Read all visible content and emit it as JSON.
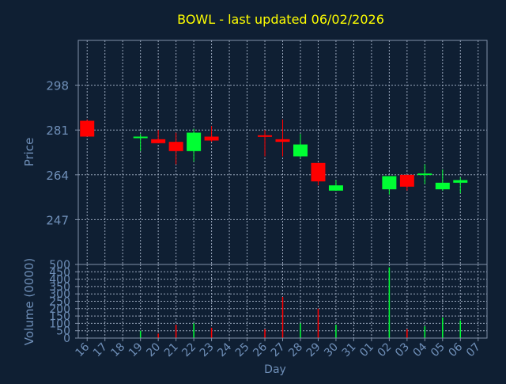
{
  "chart_data": {
    "type": "candlestick",
    "title": "BOWL - last updated 06/02/2026",
    "xlabel": "Day",
    "price_panel": {
      "ylabel": "Price",
      "ylim": [
        230,
        315
      ],
      "yticks": [
        247,
        264,
        281,
        298
      ]
    },
    "volume_panel": {
      "ylabel": "Volume (0000)",
      "ylim": [
        0,
        500
      ],
      "yticks": [
        0,
        50,
        100,
        150,
        200,
        250,
        300,
        350,
        400,
        450,
        500
      ]
    },
    "categories": [
      "16",
      "17",
      "18",
      "19",
      "20",
      "21",
      "22",
      "23",
      "24",
      "25",
      "26",
      "27",
      "28",
      "29",
      "30",
      "31",
      "01",
      "02",
      "03",
      "04",
      "05",
      "06",
      "07"
    ],
    "candles": [
      {
        "i": 0,
        "o": 284.5,
        "h": 285.0,
        "l": 278.5,
        "c": 278.5
      },
      {
        "i": 3,
        "o": 278.0,
        "h": 279.5,
        "l": 273.0,
        "c": 278.5
      },
      {
        "i": 4,
        "o": 277.5,
        "h": 281.0,
        "l": 276.0,
        "c": 276.0
      },
      {
        "i": 5,
        "o": 276.5,
        "h": 280.0,
        "l": 268.0,
        "c": 273.0
      },
      {
        "i": 6,
        "o": 273.0,
        "h": 281.5,
        "l": 269.0,
        "c": 280.0
      },
      {
        "i": 7,
        "o": 278.5,
        "h": 282.5,
        "l": 276.5,
        "c": 277.0
      },
      {
        "i": 10,
        "o": 279.0,
        "h": 281.0,
        "l": 271.0,
        "c": 278.5
      },
      {
        "i": 11,
        "o": 277.5,
        "h": 285.0,
        "l": 271.0,
        "c": 276.5
      },
      {
        "i": 12,
        "o": 271.0,
        "h": 279.5,
        "l": 270.5,
        "c": 275.5
      },
      {
        "i": 13,
        "o": 268.5,
        "h": 268.5,
        "l": 260.0,
        "c": 261.5
      },
      {
        "i": 14,
        "o": 258.0,
        "h": 262.0,
        "l": 258.0,
        "c": 260.0
      },
      {
        "i": 17,
        "o": 258.5,
        "h": 263.5,
        "l": 256.5,
        "c": 263.5
      },
      {
        "i": 18,
        "o": 264.0,
        "h": 264.0,
        "l": 258.0,
        "c": 259.5
      },
      {
        "i": 19,
        "o": 264.0,
        "h": 268.0,
        "l": 260.5,
        "c": 264.5
      },
      {
        "i": 20,
        "o": 258.5,
        "h": 266.0,
        "l": 258.0,
        "c": 261.0
      },
      {
        "i": 21,
        "o": 261.0,
        "h": 263.0,
        "l": 257.0,
        "c": 262.0
      }
    ],
    "volume": [
      {
        "i": 3,
        "v": 50,
        "dir": "up"
      },
      {
        "i": 4,
        "v": 30,
        "dir": "down"
      },
      {
        "i": 5,
        "v": 90,
        "dir": "down"
      },
      {
        "i": 6,
        "v": 100,
        "dir": "up"
      },
      {
        "i": 7,
        "v": 70,
        "dir": "down"
      },
      {
        "i": 10,
        "v": 60,
        "dir": "down"
      },
      {
        "i": 11,
        "v": 280,
        "dir": "down"
      },
      {
        "i": 12,
        "v": 100,
        "dir": "up"
      },
      {
        "i": 13,
        "v": 200,
        "dir": "down"
      },
      {
        "i": 14,
        "v": 90,
        "dir": "up"
      },
      {
        "i": 17,
        "v": 480,
        "dir": "up"
      },
      {
        "i": 18,
        "v": 60,
        "dir": "down"
      },
      {
        "i": 19,
        "v": 80,
        "dir": "up"
      },
      {
        "i": 20,
        "v": 140,
        "dir": "up"
      },
      {
        "i": 21,
        "v": 120,
        "dir": "up"
      }
    ],
    "grid": true,
    "colors": {
      "background": "#0f1f33",
      "plot_background": "#0f1f33",
      "frame": "#8090a8",
      "grid": "#9aa8bd",
      "title": "#ffff00",
      "text": "#6f8fb8",
      "up": "#00ff33",
      "down": "#ff0000"
    }
  }
}
